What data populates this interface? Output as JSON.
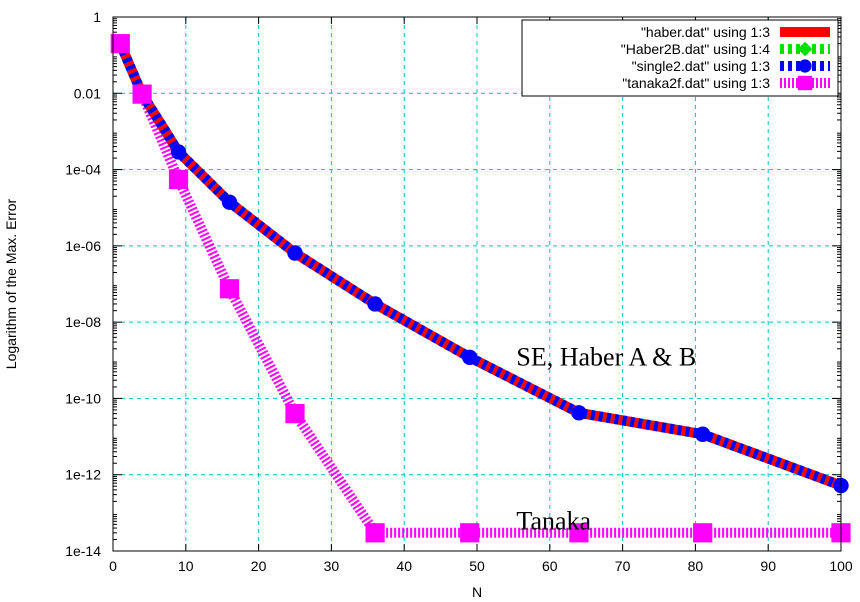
{
  "chart_data": {
    "type": "line",
    "title": "",
    "xlabel": "N",
    "ylabel": "Logarithm of the Max. Error",
    "xlim": [
      0,
      100
    ],
    "ylim": [
      1e-14,
      1
    ],
    "yscale": "log",
    "grid": true,
    "legend_position": "top-right",
    "x_ticks": [
      {
        "value": 0,
        "label": "0"
      },
      {
        "value": 10,
        "label": "10"
      },
      {
        "value": 20,
        "label": "20"
      },
      {
        "value": 30,
        "label": "30"
      },
      {
        "value": 40,
        "label": "40"
      },
      {
        "value": 50,
        "label": "50"
      },
      {
        "value": 60,
        "label": "60"
      },
      {
        "value": 70,
        "label": "70"
      },
      {
        "value": 80,
        "label": "80"
      },
      {
        "value": 90,
        "label": "90"
      },
      {
        "value": 100,
        "label": "100"
      }
    ],
    "y_ticks": [
      {
        "value": 1,
        "label": "1"
      },
      {
        "value": 0.01,
        "label": "0.01"
      },
      {
        "value": 0.0001,
        "label": "1e-04"
      },
      {
        "value": 1e-06,
        "label": "1e-06"
      },
      {
        "value": 1e-08,
        "label": "1e-08"
      },
      {
        "value": 1e-10,
        "label": "1e-10"
      },
      {
        "value": 1e-12,
        "label": "1e-12"
      },
      {
        "value": 1e-14,
        "label": "1e-14"
      }
    ],
    "x": [
      1,
      4,
      9,
      16,
      25,
      36,
      49,
      64,
      81,
      100
    ],
    "series": [
      {
        "name": "\"haber.dat\" using 1:3",
        "style": "solid",
        "color": "#ff0000",
        "marker": "none",
        "values": [
          0.2,
          0.0095,
          0.00029,
          1.4e-05,
          6.5e-07,
          3e-08,
          1.2e-09,
          4.2e-11,
          1.15e-11,
          5.2e-13
        ]
      },
      {
        "name": "\"Haber2B.dat\" using 1:4",
        "style": "dashed",
        "color": "#00e000",
        "marker": "diamond",
        "values": [
          0.2,
          0.0095,
          0.00029,
          1.4e-05,
          6.5e-07,
          3e-08,
          1.2e-09,
          4.2e-11,
          1.15e-11,
          5.2e-13
        ]
      },
      {
        "name": "\"single2.dat\" using  1:3",
        "style": "dashed",
        "color": "#0000ff",
        "marker": "circle",
        "values": [
          0.2,
          0.0095,
          0.00029,
          1.4e-05,
          6.5e-07,
          3e-08,
          1.2e-09,
          4.2e-11,
          1.15e-11,
          5.2e-13
        ]
      },
      {
        "name": "\"tanaka2f.dat\" using 1:3",
        "style": "dotted",
        "color": "#ff00ff",
        "marker": "square",
        "values": [
          0.2,
          0.0095,
          5.5e-05,
          7.5e-08,
          4e-11,
          3e-14,
          3e-14,
          3e-14,
          3e-14,
          3e-14
        ]
      }
    ],
    "annotations": [
      {
        "text": "SE, Haber A & B",
        "x": 55,
        "y": 1.5e-09
      },
      {
        "text": "Tanaka",
        "x": 55,
        "y": 6e-14
      }
    ]
  }
}
